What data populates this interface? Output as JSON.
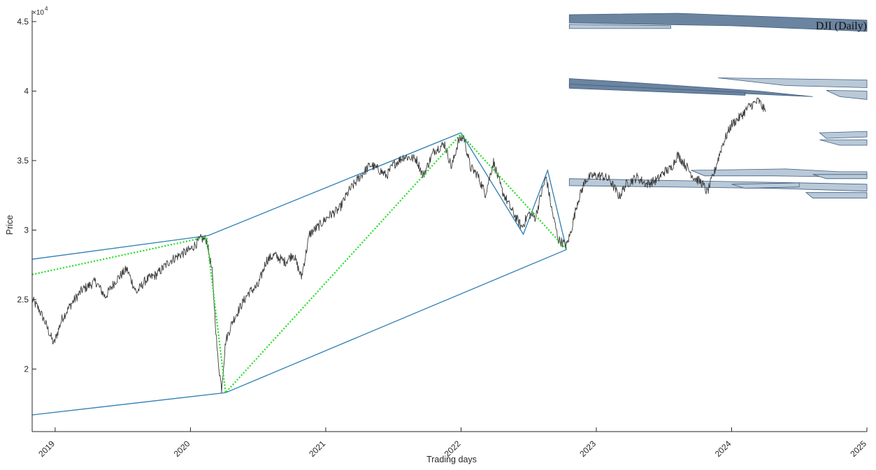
{
  "chart_data": {
    "type": "line",
    "annotation": "DJI (Daily)",
    "xlabel": "Trading days",
    "ylabel": "Price",
    "y_exponent_label": "×10",
    "y_exponent_power": "4",
    "xlim": [
      2018.83,
      2025.0
    ],
    "ylim": [
      15500,
      45800
    ],
    "grid": false,
    "x_ticks": [
      {
        "value": 2019,
        "label": "2019"
      },
      {
        "value": 2020,
        "label": "2020"
      },
      {
        "value": 2021,
        "label": "2021"
      },
      {
        "value": 2022,
        "label": "2022"
      },
      {
        "value": 2023,
        "label": "2023"
      },
      {
        "value": 2024,
        "label": "2024"
      },
      {
        "value": 2025,
        "label": "2025"
      }
    ],
    "y_ticks": [
      {
        "value": 20000,
        "label": "2"
      },
      {
        "value": 25000,
        "label": "2.5"
      },
      {
        "value": 30000,
        "label": "3"
      },
      {
        "value": 35000,
        "label": "3.5"
      },
      {
        "value": 40000,
        "label": "4"
      },
      {
        "value": 45000,
        "label": "4.5"
      }
    ],
    "colors": {
      "price": "#3c3c3c",
      "channel": "#2e7eb4",
      "zigzag": "#22dd22",
      "zone_dark": "#6b84a0",
      "zone_light": "#b9c9d8",
      "zone_edge": "#3f5f80"
    },
    "price_anchors": [
      [
        2018.83,
        25000
      ],
      [
        2018.88,
        24300
      ],
      [
        2018.92,
        23500
      ],
      [
        2018.99,
        21800
      ],
      [
        2019.05,
        23600
      ],
      [
        2019.12,
        24700
      ],
      [
        2019.2,
        25700
      ],
      [
        2019.3,
        26300
      ],
      [
        2019.37,
        25200
      ],
      [
        2019.45,
        26400
      ],
      [
        2019.53,
        27200
      ],
      [
        2019.6,
        25500
      ],
      [
        2019.67,
        26400
      ],
      [
        2019.75,
        26800
      ],
      [
        2019.85,
        27800
      ],
      [
        2019.92,
        28200
      ],
      [
        2020.0,
        28600
      ],
      [
        2020.08,
        29400
      ],
      [
        2020.12,
        29300
      ],
      [
        2020.16,
        27000
      ],
      [
        2020.2,
        21000
      ],
      [
        2020.23,
        18600
      ],
      [
        2020.26,
        22000
      ],
      [
        2020.31,
        23400
      ],
      [
        2020.37,
        24500
      ],
      [
        2020.43,
        25500
      ],
      [
        2020.5,
        26000
      ],
      [
        2020.56,
        27800
      ],
      [
        2020.62,
        28200
      ],
      [
        2020.7,
        27700
      ],
      [
        2020.76,
        28300
      ],
      [
        2020.82,
        26600
      ],
      [
        2020.88,
        29700
      ],
      [
        2020.95,
        30300
      ],
      [
        2021.02,
        31000
      ],
      [
        2021.1,
        31500
      ],
      [
        2021.17,
        32800
      ],
      [
        2021.25,
        33800
      ],
      [
        2021.33,
        34700
      ],
      [
        2021.4,
        34300
      ],
      [
        2021.45,
        33900
      ],
      [
        2021.5,
        34700
      ],
      [
        2021.58,
        35300
      ],
      [
        2021.67,
        35100
      ],
      [
        2021.72,
        33900
      ],
      [
        2021.8,
        35700
      ],
      [
        2021.88,
        36200
      ],
      [
        2021.93,
        34500
      ],
      [
        2021.98,
        36400
      ],
      [
        2022.02,
        36700
      ],
      [
        2022.07,
        34500
      ],
      [
        2022.12,
        34000
      ],
      [
        2022.18,
        32600
      ],
      [
        2022.24,
        34900
      ],
      [
        2022.3,
        32900
      ],
      [
        2022.37,
        31500
      ],
      [
        2022.45,
        30200
      ],
      [
        2022.5,
        31200
      ],
      [
        2022.55,
        30900
      ],
      [
        2022.6,
        32900
      ],
      [
        2022.63,
        33800
      ],
      [
        2022.67,
        31500
      ],
      [
        2022.72,
        29300
      ],
      [
        2022.78,
        28900
      ],
      [
        2022.81,
        29800
      ],
      [
        2022.86,
        32000
      ],
      [
        2022.92,
        33600
      ],
      [
        2022.97,
        33900
      ],
      [
        2023.04,
        33900
      ],
      [
        2023.1,
        33600
      ],
      [
        2023.17,
        32400
      ],
      [
        2023.22,
        33300
      ],
      [
        2023.3,
        33800
      ],
      [
        2023.37,
        33300
      ],
      [
        2023.45,
        33600
      ],
      [
        2023.5,
        34200
      ],
      [
        2023.55,
        34400
      ],
      [
        2023.6,
        35400
      ],
      [
        2023.65,
        34800
      ],
      [
        2023.72,
        33800
      ],
      [
        2023.78,
        33400
      ],
      [
        2023.82,
        32700
      ],
      [
        2023.87,
        34100
      ],
      [
        2023.93,
        36100
      ],
      [
        2024.0,
        37600
      ],
      [
        2024.07,
        38200
      ],
      [
        2024.13,
        38900
      ],
      [
        2024.2,
        39300
      ],
      [
        2024.25,
        38500
      ]
    ],
    "channel_lines": [
      [
        [
          2018.83,
          27900
        ],
        [
          2020.13,
          29600
        ],
        [
          2022.0,
          37000
        ]
      ],
      [
        [
          2018.83,
          16700
        ],
        [
          2020.26,
          18300
        ],
        [
          2022.78,
          28600
        ]
      ],
      [
        [
          2022.0,
          37000
        ],
        [
          2022.46,
          29700
        ],
        [
          2022.64,
          34300
        ],
        [
          2022.78,
          28600
        ]
      ]
    ],
    "zigzag": [
      [
        2018.83,
        26800
      ],
      [
        2020.12,
        29500
      ],
      [
        2020.26,
        18300
      ],
      [
        2022.0,
        36900
      ],
      [
        2022.78,
        28600
      ]
    ],
    "zones": [
      {
        "shade": "dark",
        "points": [
          [
            2022.8,
            45500
          ],
          [
            2023.6,
            45600
          ],
          [
            2025.0,
            45100
          ],
          [
            2025.0,
            44300
          ],
          [
            2024.0,
            44700
          ],
          [
            2022.8,
            44900
          ]
        ]
      },
      {
        "shade": "light",
        "points": [
          [
            2022.8,
            44800
          ],
          [
            2023.55,
            44700
          ],
          [
            2023.55,
            44500
          ],
          [
            2022.8,
            44500
          ]
        ]
      },
      {
        "shade": "dark",
        "points": [
          [
            2022.8,
            40900
          ],
          [
            2023.3,
            40600
          ],
          [
            2024.2,
            40000
          ],
          [
            2024.6,
            39600
          ],
          [
            2023.9,
            39900
          ],
          [
            2022.8,
            40300
          ]
        ]
      },
      {
        "shade": "dark",
        "points": [
          [
            2022.8,
            40500
          ],
          [
            2024.1,
            39900
          ],
          [
            2024.1,
            39700
          ],
          [
            2022.8,
            40200
          ]
        ]
      },
      {
        "shade": "light",
        "points": [
          [
            2023.9,
            40950
          ],
          [
            2025.0,
            40800
          ],
          [
            2025.0,
            40250
          ],
          [
            2024.4,
            40400
          ]
        ]
      },
      {
        "shade": "light",
        "points": [
          [
            2024.7,
            40050
          ],
          [
            2025.0,
            40000
          ],
          [
            2025.0,
            39400
          ],
          [
            2024.8,
            39600
          ]
        ]
      },
      {
        "shade": "light",
        "points": [
          [
            2024.65,
            37000
          ],
          [
            2025.0,
            37100
          ],
          [
            2025.0,
            36700
          ],
          [
            2024.7,
            36600
          ]
        ]
      },
      {
        "shade": "light",
        "points": [
          [
            2024.65,
            36500
          ],
          [
            2025.0,
            36500
          ],
          [
            2025.0,
            36100
          ],
          [
            2024.8,
            36100
          ]
        ]
      },
      {
        "shade": "light",
        "points": [
          [
            2023.7,
            34300
          ],
          [
            2024.4,
            34400
          ],
          [
            2024.8,
            34200
          ],
          [
            2025.0,
            34200
          ],
          [
            2025.0,
            33800
          ],
          [
            2024.3,
            33900
          ],
          [
            2023.8,
            33900
          ]
        ]
      },
      {
        "shade": "light",
        "points": [
          [
            2022.8,
            33700
          ],
          [
            2024.5,
            33400
          ],
          [
            2025.0,
            33300
          ],
          [
            2025.0,
            32800
          ],
          [
            2024.3,
            33000
          ],
          [
            2022.8,
            33200
          ]
        ]
      },
      {
        "shade": "light",
        "points": [
          [
            2024.0,
            33300
          ],
          [
            2024.5,
            33400
          ],
          [
            2024.5,
            33100
          ],
          [
            2024.1,
            33000
          ]
        ]
      },
      {
        "shade": "light",
        "points": [
          [
            2024.55,
            32700
          ],
          [
            2025.0,
            32700
          ],
          [
            2025.0,
            32300
          ],
          [
            2024.6,
            32300
          ]
        ]
      },
      {
        "shade": "light",
        "points": [
          [
            2024.6,
            34000
          ],
          [
            2025.0,
            34000
          ],
          [
            2025.0,
            33700
          ],
          [
            2024.7,
            33700
          ]
        ]
      }
    ]
  }
}
